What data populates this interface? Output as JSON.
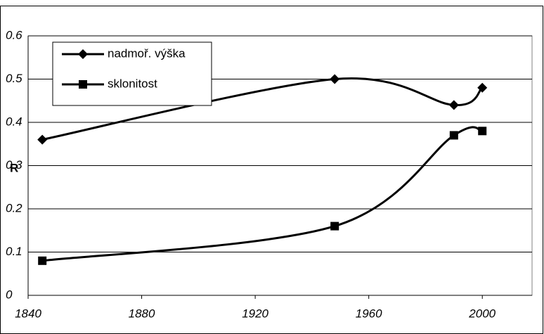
{
  "chart_data": {
    "type": "line",
    "y_label": "R",
    "xlim": [
      1840,
      2020
    ],
    "xticks": [
      1840,
      1880,
      1920,
      1960,
      2000
    ],
    "ylim": [
      0,
      0.6
    ],
    "yticks": [
      0,
      0.1,
      0.2,
      0.3,
      0.4,
      0.5,
      0.6
    ],
    "grid": true,
    "legend": "upper left",
    "series": [
      {
        "name": "nadmoř. výška",
        "color": "#000000",
        "marker": "diamond",
        "x": [
          1845,
          1948,
          1990,
          2000
        ],
        "values": [
          0.36,
          0.5,
          0.44,
          0.48
        ]
      },
      {
        "name": "sklonitost",
        "color": "#000000",
        "marker": "square",
        "x": [
          1845,
          1948,
          1990,
          2000
        ],
        "values": [
          0.08,
          0.16,
          0.37,
          0.38
        ]
      }
    ]
  }
}
